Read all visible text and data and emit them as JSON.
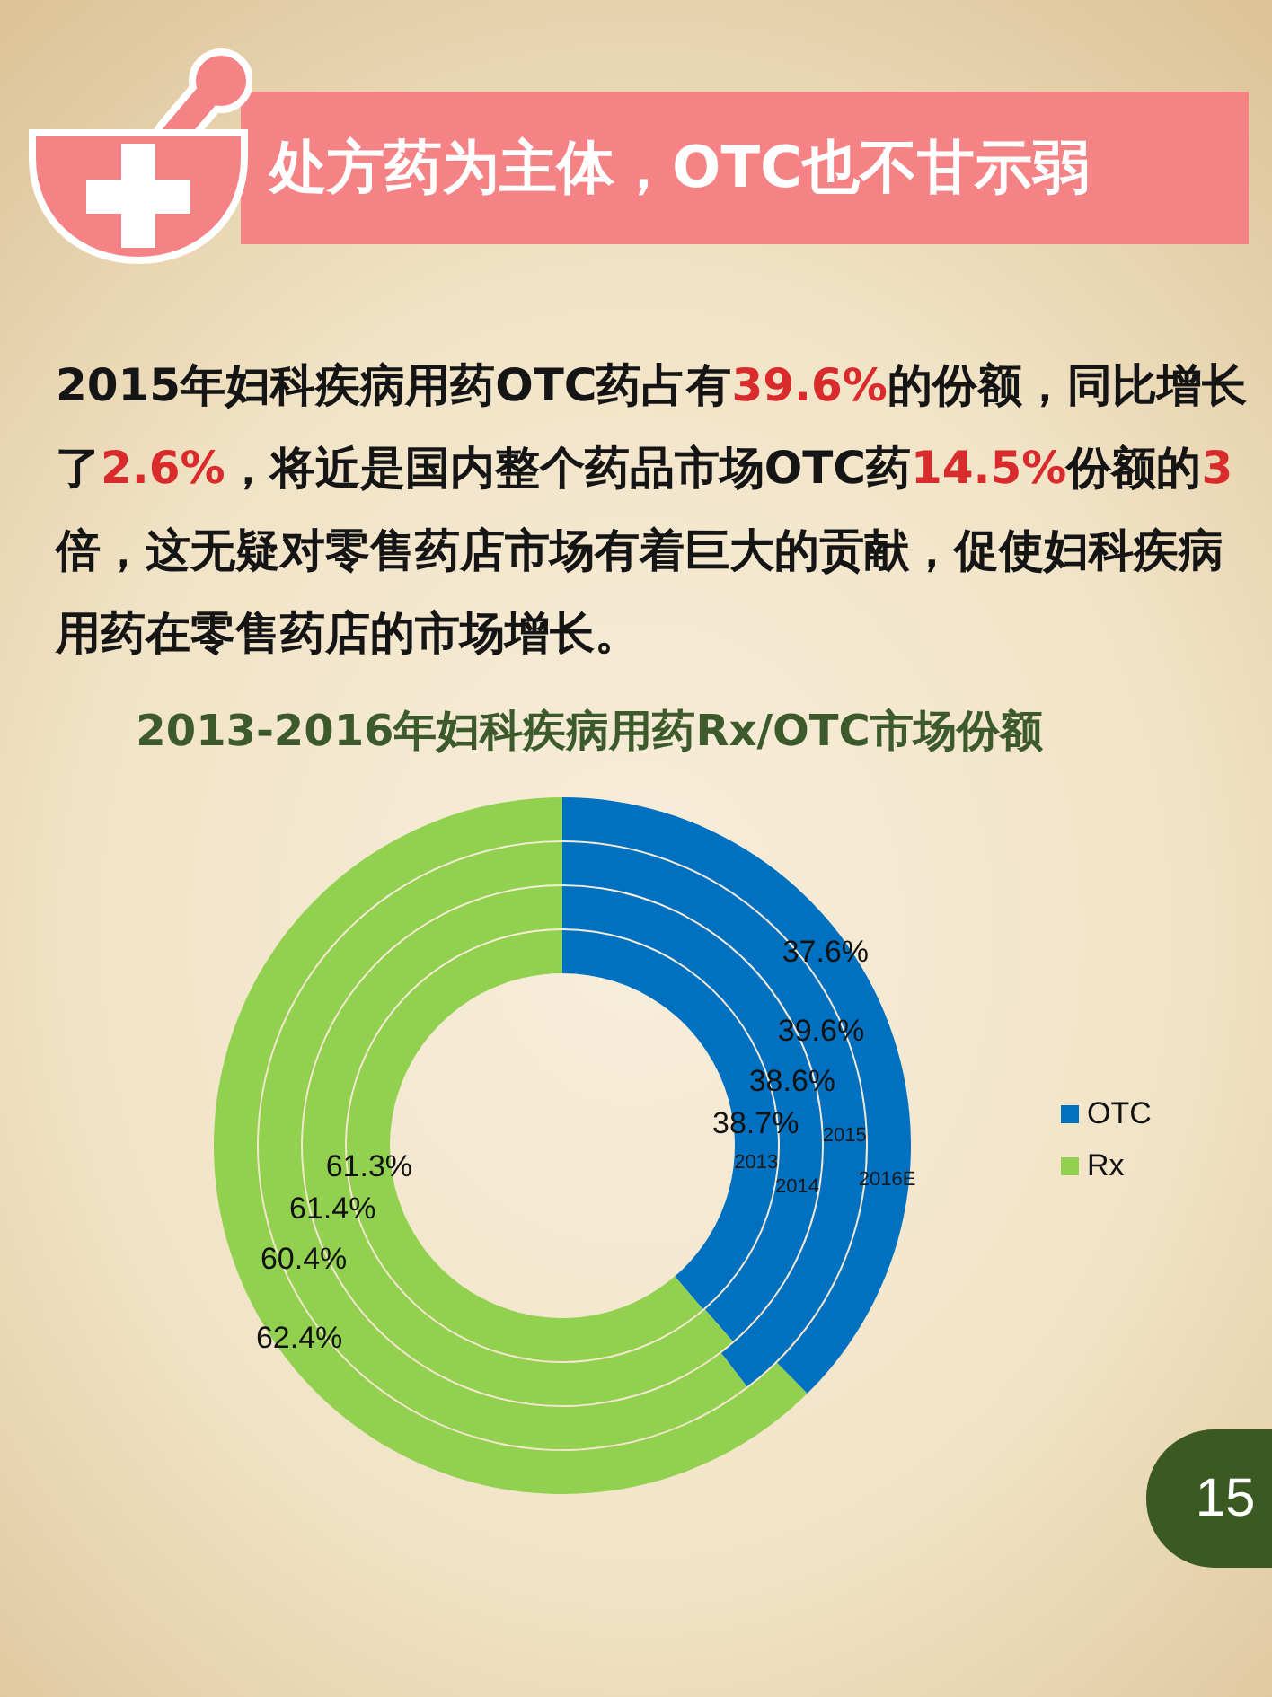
{
  "chart_data": {
    "type": "donut",
    "title": "2013-2016年妇科疾病用药Rx/OTC市场份额",
    "categories": [
      "OTC",
      "Rx"
    ],
    "colors": [
      "#0070c0",
      "#92d050"
    ],
    "series": [
      {
        "name": "2013",
        "values": [
          38.7,
          61.3
        ],
        "value_labels": [
          "38.7%",
          "61.3%"
        ]
      },
      {
        "name": "2014",
        "values": [
          38.6,
          61.4
        ],
        "value_labels": [
          "38.6%",
          "61.4%"
        ]
      },
      {
        "name": "2015",
        "values": [
          39.6,
          60.4
        ],
        "value_labels": [
          "39.6%",
          "60.4%"
        ]
      },
      {
        "name": "2016E",
        "values": [
          37.6,
          62.4
        ],
        "value_labels": [
          "37.6%",
          "62.4%"
        ]
      }
    ],
    "legend": "right",
    "annotations": [
      "处方药为主体，OTC也不甘示弱",
      "2015年妇科疾病用药OTC药占有39.6%的份额，同比增长了2.6%，将近是国内整个药品市场OTC药14.5%份额的3倍，这无疑对零售药店市场有着巨大的贡献，促使妇科疾病用药在零售药店的市场增长。",
      "15"
    ]
  }
}
